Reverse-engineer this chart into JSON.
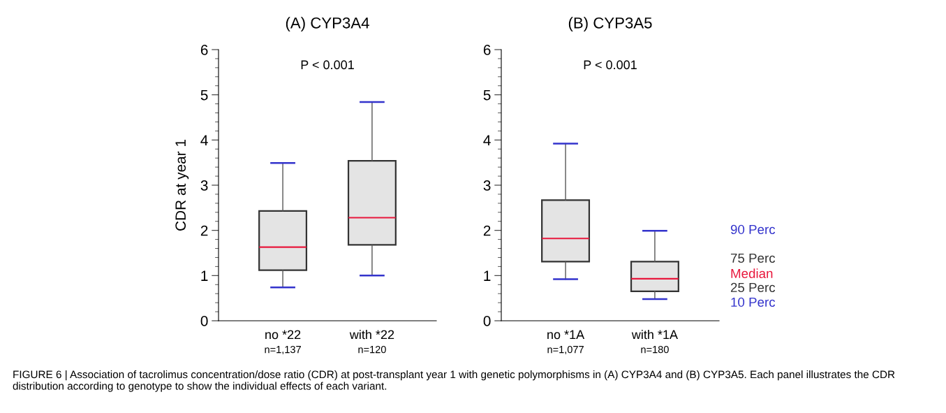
{
  "chart_data": [
    {
      "type": "box",
      "title": "(A) CYP3A4",
      "ylabel": "CDR at year 1",
      "categories": [
        "no *22\nn=1,137",
        "with *22\nn=120"
      ],
      "boxes": [
        {
          "low": 0.74,
          "q1": 1.12,
          "median": 1.63,
          "q3": 2.43,
          "high": 3.49
        },
        {
          "low": 1.0,
          "q1": 1.68,
          "median": 2.28,
          "q3": 3.54,
          "high": 4.84
        }
      ],
      "ylim": [
        0,
        6
      ],
      "yticks": [
        0,
        1,
        2,
        3,
        4,
        5,
        6
      ],
      "grid": false,
      "annotations": [
        "P < 0.001",
        "FIGURE 6 | Association of tacrolimus concentration/dose ratio (CDR) at post-transplant year 1 with genetic polymorphisms in (A) CYP3A4 and (B) CYP3A5. Each panel illustrates the CDR distribution according to genotype to show the individual effects of each variant."
      ]
    },
    {
      "type": "box",
      "title": "(B) CYP3A5",
      "categories": [
        "no *1A\nn=1,077",
        "with *1A\nn=180"
      ],
      "boxes": [
        {
          "low": 0.92,
          "q1": 1.31,
          "median": 1.82,
          "q3": 2.67,
          "high": 3.92
        },
        {
          "low": 0.48,
          "q1": 0.65,
          "median": 0.93,
          "q3": 1.31,
          "high": 1.99
        }
      ],
      "ylim": [
        0,
        6
      ],
      "yticks": [
        0,
        1,
        2,
        3,
        4,
        5,
        6
      ],
      "grid": false,
      "annotations": [
        "P < 0.001",
        "90 Perc",
        "75 Perc",
        "Median",
        "25 Perc",
        "10 Perc"
      ]
    }
  ]
}
